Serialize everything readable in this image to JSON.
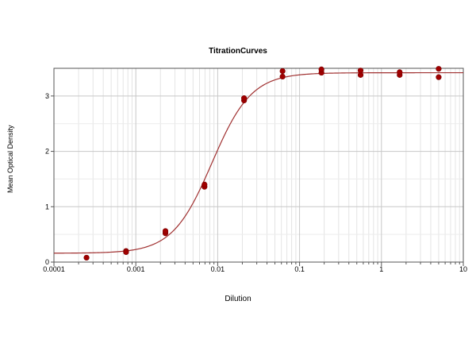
{
  "chart_data": {
    "type": "scatter",
    "title": "TitrationCurves",
    "xlabel": "Dilution",
    "ylabel": "Mean Optical Density",
    "x_scale": "log",
    "xlim": [
      0.0001,
      10
    ],
    "ylim": [
      0,
      3.5
    ],
    "grid": true,
    "x_ticks": [
      {
        "value": 0.0001,
        "label": "0.0001"
      },
      {
        "value": 0.001,
        "label": "0.001"
      },
      {
        "value": 0.01,
        "label": "0.01"
      },
      {
        "value": 0.1,
        "label": "0.1"
      },
      {
        "value": 1,
        "label": "1"
      },
      {
        "value": 10,
        "label": "10"
      }
    ],
    "y_ticks": [
      {
        "value": 0,
        "label": "0"
      },
      {
        "value": 1,
        "label": "1"
      },
      {
        "value": 2,
        "label": "2"
      },
      {
        "value": 3,
        "label": "3"
      }
    ],
    "series": [
      {
        "type": "scatter",
        "color": "#a00000",
        "points": [
          {
            "x": 0.00025,
            "y": 0.08
          },
          {
            "x": 0.00076,
            "y": 0.2
          },
          {
            "x": 0.00076,
            "y": 0.18
          },
          {
            "x": 0.0023,
            "y": 0.52
          },
          {
            "x": 0.0023,
            "y": 0.56
          },
          {
            "x": 0.0069,
            "y": 1.36
          },
          {
            "x": 0.0069,
            "y": 1.4
          },
          {
            "x": 0.021,
            "y": 2.92
          },
          {
            "x": 0.021,
            "y": 2.96
          },
          {
            "x": 0.062,
            "y": 3.35
          },
          {
            "x": 0.062,
            "y": 3.45
          },
          {
            "x": 0.185,
            "y": 3.42
          },
          {
            "x": 0.185,
            "y": 3.48
          },
          {
            "x": 0.556,
            "y": 3.38
          },
          {
            "x": 0.556,
            "y": 3.46
          },
          {
            "x": 1.67,
            "y": 3.38
          },
          {
            "x": 1.67,
            "y": 3.43
          },
          {
            "x": 5.0,
            "y": 3.34
          },
          {
            "x": 5.0,
            "y": 3.49
          }
        ]
      },
      {
        "type": "line",
        "color": "#a03030",
        "fit": "4PL",
        "bottom": 0.16,
        "top": 3.42,
        "ec50": 0.0085,
        "hill": 1.8
      }
    ]
  }
}
